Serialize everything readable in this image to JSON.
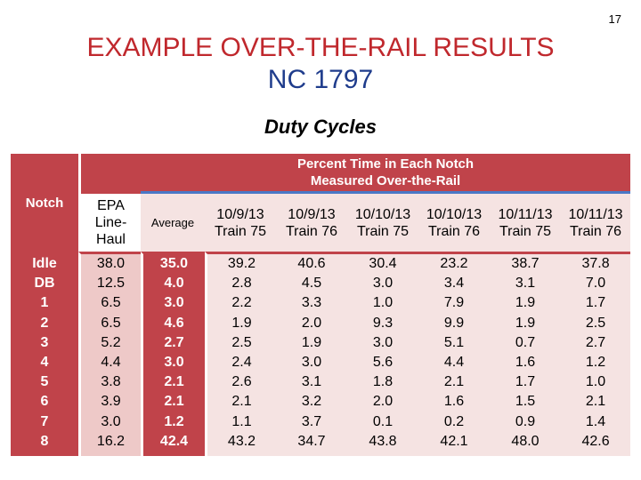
{
  "slide_number": "17",
  "title_line1": "EXAMPLE OVER-THE-RAIL RESULTS",
  "title_line2": "NC 1797",
  "subtitle": "Duty Cycles",
  "table": {
    "notch_header": "Notch",
    "epa_header": [
      "EPA",
      "Line-",
      "Haul"
    ],
    "group_header": [
      "Percent Time in Each Notch",
      "Measured Over-the-Rail"
    ],
    "average_header": "Average",
    "run_headers": [
      {
        "date": "10/9/13",
        "train": "Train 75"
      },
      {
        "date": "10/9/13",
        "train": "Train 76"
      },
      {
        "date": "10/10/13",
        "train": "Train 75"
      },
      {
        "date": "10/10/13",
        "train": "Train 76"
      },
      {
        "date": "10/11/13",
        "train": "Train 75"
      },
      {
        "date": "10/11/13",
        "train": "Train 76"
      }
    ],
    "notches": [
      "Idle",
      "DB",
      "1",
      "2",
      "3",
      "4",
      "5",
      "6",
      "7",
      "8"
    ],
    "epa_line_haul": [
      "38.0",
      "12.5",
      "6.5",
      "6.5",
      "5.2",
      "4.4",
      "3.8",
      "3.9",
      "3.0",
      "16.2"
    ],
    "average": [
      "35.0",
      "4.0",
      "3.0",
      "4.6",
      "2.7",
      "3.0",
      "2.1",
      "2.1",
      "1.2",
      "42.4"
    ],
    "runs": [
      [
        "39.2",
        "2.8",
        "2.2",
        "1.9",
        "2.5",
        "2.4",
        "2.6",
        "2.1",
        "1.1",
        "43.2"
      ],
      [
        "40.6",
        "4.5",
        "3.3",
        "2.0",
        "1.9",
        "3.0",
        "3.1",
        "3.2",
        "3.7",
        "34.7"
      ],
      [
        "30.4",
        "3.0",
        "1.0",
        "9.3",
        "3.0",
        "5.6",
        "1.8",
        "2.0",
        "0.1",
        "43.8"
      ],
      [
        "23.2",
        "3.4",
        "7.9",
        "9.9",
        "5.1",
        "4.4",
        "2.1",
        "1.6",
        "0.2",
        "42.1"
      ],
      [
        "38.7",
        "3.1",
        "1.9",
        "1.9",
        "0.7",
        "1.6",
        "1.7",
        "1.5",
        "0.9",
        "48.0"
      ],
      [
        "37.8",
        "7.0",
        "1.7",
        "2.5",
        "2.7",
        "1.2",
        "1.0",
        "2.1",
        "1.4",
        "42.6"
      ]
    ]
  }
}
